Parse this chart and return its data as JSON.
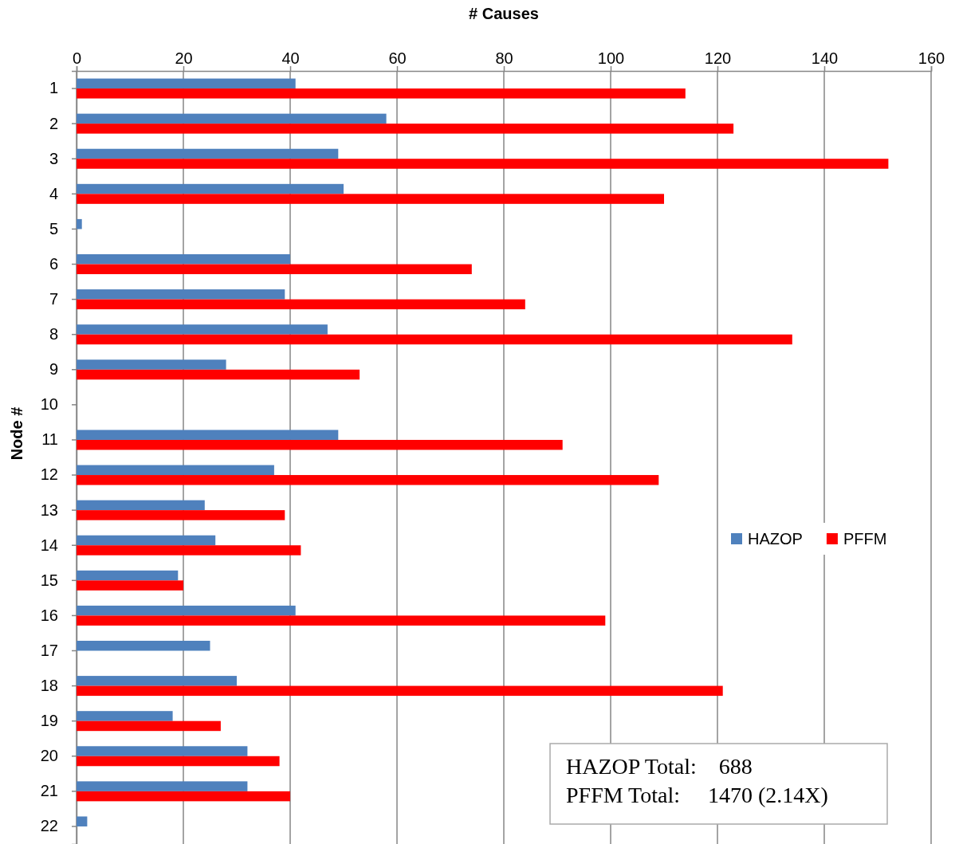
{
  "chart_data": {
    "type": "bar",
    "orientation": "horizontal",
    "xlabel": "# Causes",
    "ylabel": "Node #",
    "categories": [
      "1",
      "2",
      "3",
      "4",
      "5",
      "6",
      "7",
      "8",
      "9",
      "10",
      "11",
      "12",
      "13",
      "14",
      "15",
      "16",
      "17",
      "18",
      "19",
      "20",
      "21",
      "22"
    ],
    "series": [
      {
        "name": "HAZOP",
        "color": "#4f81bd",
        "values": [
          41,
          58,
          49,
          50,
          1,
          40,
          39,
          47,
          28,
          0,
          49,
          37,
          24,
          26,
          19,
          41,
          25,
          30,
          18,
          32,
          32,
          2
        ]
      },
      {
        "name": "PFFM",
        "color": "#ff0000",
        "values": [
          114,
          123,
          152,
          110,
          0,
          74,
          84,
          134,
          53,
          0,
          91,
          109,
          39,
          42,
          20,
          99,
          0,
          121,
          27,
          38,
          40,
          0
        ]
      }
    ],
    "xlim": [
      0,
      160
    ],
    "xticks": [
      0,
      20,
      40,
      60,
      80,
      100,
      120,
      140,
      160
    ],
    "grid": "x",
    "legend": "right",
    "annotations": [
      "HAZOP Total:    688",
      "PFFM Total:     1470 (2.14X)"
    ]
  }
}
